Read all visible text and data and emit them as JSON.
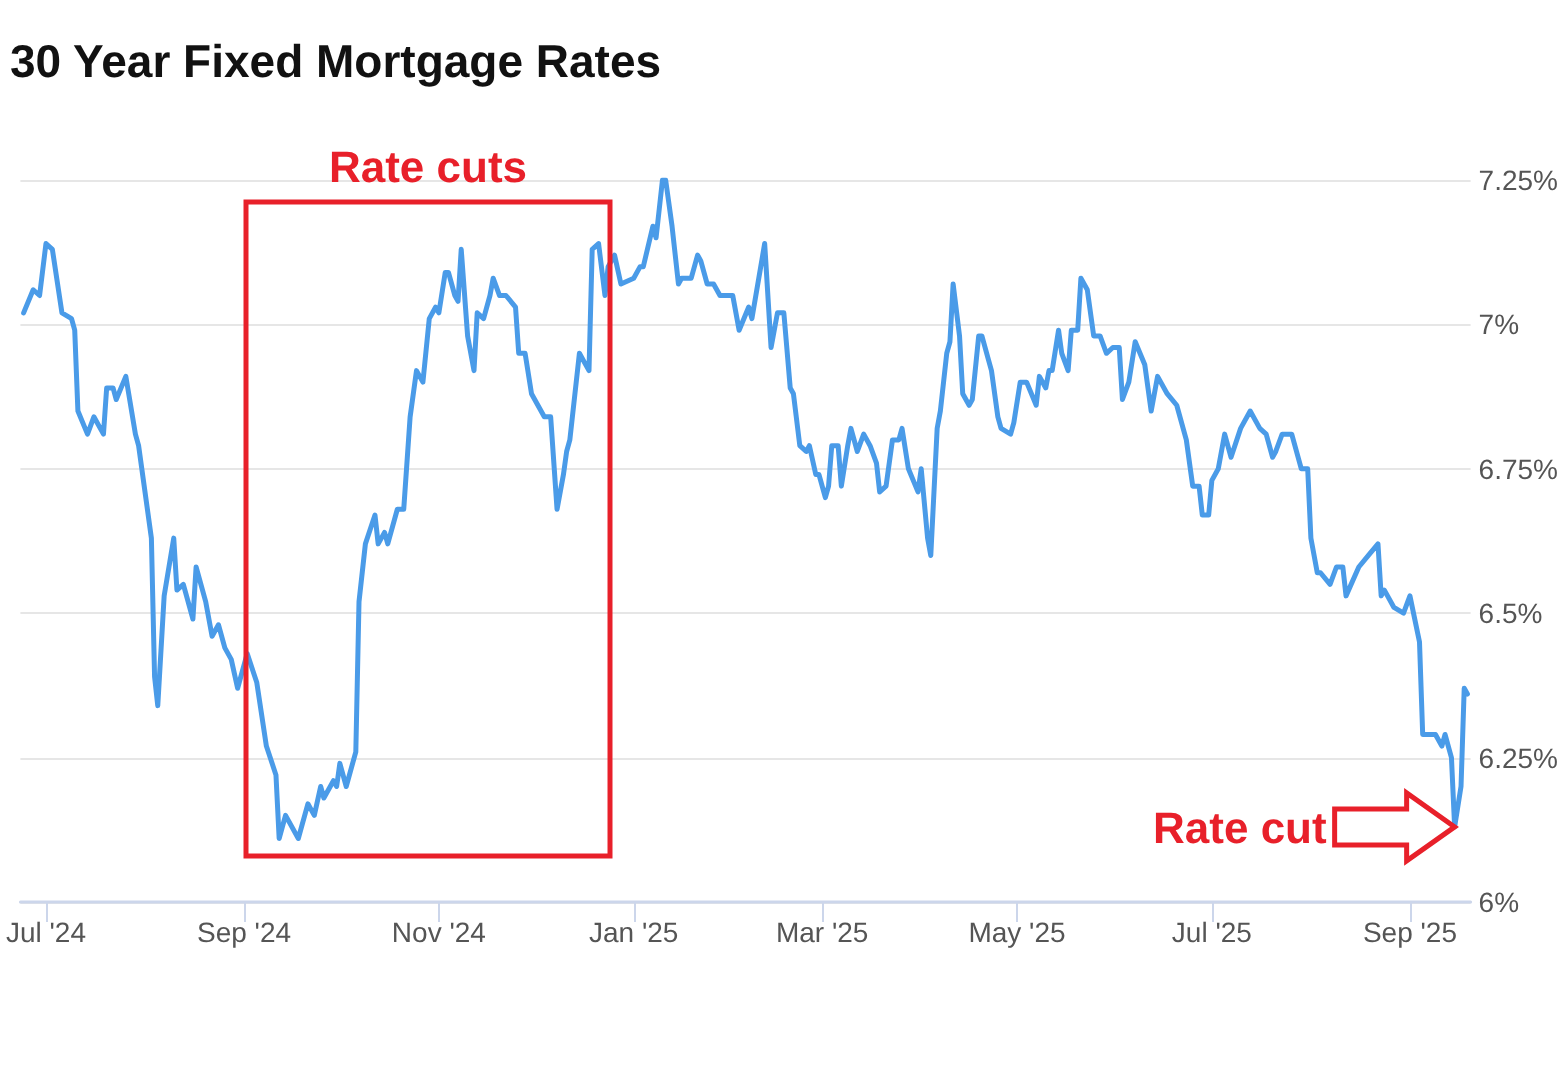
{
  "chart_data": {
    "type": "line",
    "title": "30 Year Fixed Mortgage Rates",
    "annotations": [
      "Rate cuts",
      {
        "text": "Rate cut",
        "x": "2025-09-15",
        "y": 6.13
      }
    ],
    "grid": "y",
    "marker": "none",
    "line_style": "solid",
    "xlim": [
      "2024-06-23",
      "2025-09-20"
    ],
    "xticks": [
      {
        "value": "2024-07-01",
        "label": "Jul '24"
      },
      {
        "value": "2024-09-01",
        "label": "Sep '24"
      },
      {
        "value": "2024-11-01",
        "label": "Nov '24"
      },
      {
        "value": "2025-01-01",
        "label": "Jan '25"
      },
      {
        "value": "2025-03-01",
        "label": "Mar '25"
      },
      {
        "value": "2025-05-01",
        "label": "May '25"
      },
      {
        "value": "2025-07-01",
        "label": "Jul '25"
      },
      {
        "value": "2025-09-01",
        "label": "Sep '25"
      }
    ],
    "ylim": [
      6,
      7.25
    ],
    "yticks": [
      {
        "value": 6,
        "label": "6%"
      },
      {
        "value": 6.25,
        "label": "6.25%"
      },
      {
        "value": 6.5,
        "label": "6.5%"
      },
      {
        "value": 6.75,
        "label": "6.75%"
      },
      {
        "value": 7,
        "label": "7%"
      },
      {
        "value": 7.25,
        "label": "7.25%"
      }
    ],
    "x": [
      "2024-06-24",
      "2024-06-27",
      "2024-06-29",
      "2024-07-01",
      "2024-07-03",
      "2024-07-06",
      "2024-07-09",
      "2024-07-10",
      "2024-07-11",
      "2024-07-14",
      "2024-07-16",
      "2024-07-19",
      "2024-07-20",
      "2024-07-22",
      "2024-07-23",
      "2024-07-26",
      "2024-07-29",
      "2024-07-30",
      "2024-08-03",
      "2024-08-04",
      "2024-08-05",
      "2024-08-07",
      "2024-08-10",
      "2024-08-11",
      "2024-08-13",
      "2024-08-16",
      "2024-08-17",
      "2024-08-20",
      "2024-08-22",
      "2024-08-24",
      "2024-08-26",
      "2024-08-28",
      "2024-08-30",
      "2024-09-02",
      "2024-09-05",
      "2024-09-08",
      "2024-09-11",
      "2024-09-12",
      "2024-09-14",
      "2024-09-18",
      "2024-09-21",
      "2024-09-23",
      "2024-09-25",
      "2024-09-26",
      "2024-09-29",
      "2024-09-30",
      "2024-10-01",
      "2024-10-03",
      "2024-10-06",
      "2024-10-07",
      "2024-10-09",
      "2024-10-12",
      "2024-10-13",
      "2024-10-15",
      "2024-10-16",
      "2024-10-19",
      "2024-10-21",
      "2024-10-23",
      "2024-10-25",
      "2024-10-27",
      "2024-10-29",
      "2024-10-31",
      "2024-11-01",
      "2024-11-03",
      "2024-11-04",
      "2024-11-06",
      "2024-11-07",
      "2024-11-08",
      "2024-11-10",
      "2024-11-12",
      "2024-11-13",
      "2024-11-15",
      "2024-11-17",
      "2024-11-18",
      "2024-11-20",
      "2024-11-22",
      "2024-11-25",
      "2024-11-26",
      "2024-11-28",
      "2024-11-30",
      "2024-12-02",
      "2024-12-04",
      "2024-12-06",
      "2024-12-08",
      "2024-12-10",
      "2024-12-11",
      "2024-12-12",
      "2024-12-15",
      "2024-12-18",
      "2024-12-19",
      "2024-12-21",
      "2024-12-23",
      "2024-12-24",
      "2024-12-26",
      "2024-12-28",
      "2025-01-01",
      "2025-01-03",
      "2025-01-04",
      "2025-01-07",
      "2025-01-08",
      "2025-01-10",
      "2025-01-11",
      "2025-01-13",
      "2025-01-15",
      "2025-01-16",
      "2025-01-19",
      "2025-01-21",
      "2025-01-22",
      "2025-01-24",
      "2025-01-26",
      "2025-01-28",
      "2025-02-01",
      "2025-02-03",
      "2025-02-06",
      "2025-02-07",
      "2025-02-11",
      "2025-02-13",
      "2025-02-15",
      "2025-02-17",
      "2025-02-19",
      "2025-02-20",
      "2025-02-22",
      "2025-02-24",
      "2025-02-25",
      "2025-02-27",
      "2025-02-28",
      "2025-03-02",
      "2025-03-03",
      "2025-03-04",
      "2025-03-06",
      "2025-03-07",
      "2025-03-09",
      "2025-03-10",
      "2025-03-12",
      "2025-03-14",
      "2025-03-16",
      "2025-03-18",
      "2025-03-19",
      "2025-03-21",
      "2025-03-23",
      "2025-03-25",
      "2025-03-26",
      "2025-03-28",
      "2025-03-31",
      "2025-04-01",
      "2025-04-03",
      "2025-04-04",
      "2025-04-06",
      "2025-04-07",
      "2025-04-09",
      "2025-04-10",
      "2025-04-11",
      "2025-04-13",
      "2025-04-14",
      "2025-04-16",
      "2025-04-17",
      "2025-04-19",
      "2025-04-20",
      "2025-04-22",
      "2025-04-23",
      "2025-04-25",
      "2025-04-26",
      "2025-04-29",
      "2025-04-30",
      "2025-05-02",
      "2025-05-04",
      "2025-05-07",
      "2025-05-08",
      "2025-05-10",
      "2025-05-11",
      "2025-05-12",
      "2025-05-14",
      "2025-05-15",
      "2025-05-17",
      "2025-05-18",
      "2025-05-20",
      "2025-05-21",
      "2025-05-23",
      "2025-05-25",
      "2025-05-27",
      "2025-05-29",
      "2025-05-31",
      "2025-06-02",
      "2025-06-03",
      "2025-06-05",
      "2025-06-07",
      "2025-06-10",
      "2025-06-12",
      "2025-06-14",
      "2025-06-17",
      "2025-06-20",
      "2025-06-23",
      "2025-06-25",
      "2025-06-27",
      "2025-06-28",
      "2025-06-30",
      "2025-07-01",
      "2025-07-03",
      "2025-07-05",
      "2025-07-07",
      "2025-07-10",
      "2025-07-13",
      "2025-07-16",
      "2025-07-18",
      "2025-07-20",
      "2025-07-21",
      "2025-07-23",
      "2025-07-26",
      "2025-07-29",
      "2025-07-31",
      "2025-08-01",
      "2025-08-03",
      "2025-08-04",
      "2025-08-07",
      "2025-08-09",
      "2025-08-11",
      "2025-08-12",
      "2025-08-16",
      "2025-08-19",
      "2025-08-22",
      "2025-08-23",
      "2025-08-24",
      "2025-08-27",
      "2025-08-30",
      "2025-09-01",
      "2025-09-04",
      "2025-09-05",
      "2025-09-07",
      "2025-09-09",
      "2025-09-11",
      "2025-09-12",
      "2025-09-14",
      "2025-09-15",
      "2025-09-17",
      "2025-09-18",
      "2025-09-19"
    ],
    "series": [
      {
        "color": "#4a9be8",
        "values": [
          7.02,
          7.06,
          7.05,
          7.14,
          7.13,
          7.02,
          7.01,
          6.99,
          6.85,
          6.81,
          6.84,
          6.81,
          6.89,
          6.89,
          6.87,
          6.91,
          6.81,
          6.79,
          6.63,
          6.39,
          6.34,
          6.53,
          6.63,
          6.54,
          6.55,
          6.49,
          6.58,
          6.52,
          6.46,
          6.48,
          6.44,
          6.42,
          6.37,
          6.43,
          6.38,
          6.27,
          6.22,
          6.11,
          6.15,
          6.11,
          6.17,
          6.15,
          6.2,
          6.18,
          6.21,
          6.2,
          6.24,
          6.2,
          6.26,
          6.52,
          6.62,
          6.67,
          6.62,
          6.64,
          6.62,
          6.68,
          6.68,
          6.84,
          6.92,
          6.9,
          7.01,
          7.03,
          7.02,
          7.09,
          7.09,
          7.05,
          7.04,
          7.13,
          6.98,
          6.92,
          7.02,
          7.01,
          7.05,
          7.08,
          7.05,
          7.05,
          7.03,
          6.95,
          6.95,
          6.88,
          6.86,
          6.84,
          6.84,
          6.68,
          6.74,
          6.78,
          6.8,
          6.95,
          6.92,
          7.13,
          7.14,
          7.05,
          7.1,
          7.12,
          7.07,
          7.08,
          7.1,
          7.1,
          7.17,
          7.15,
          7.25,
          7.25,
          7.17,
          7.07,
          7.08,
          7.08,
          7.12,
          7.11,
          7.07,
          7.07,
          7.05,
          7.05,
          6.99,
          7.03,
          7.01,
          7.14,
          6.96,
          7.02,
          7.02,
          6.89,
          6.88,
          6.79,
          6.78,
          6.79,
          6.74,
          6.74,
          6.7,
          6.72,
          6.79,
          6.79,
          6.72,
          6.79,
          6.82,
          6.78,
          6.81,
          6.79,
          6.76,
          6.71,
          6.72,
          6.8,
          6.8,
          6.82,
          6.75,
          6.71,
          6.75,
          6.63,
          6.6,
          6.82,
          6.85,
          6.95,
          6.97,
          7.07,
          6.98,
          6.88,
          6.86,
          6.87,
          6.98,
          6.98,
          6.94,
          6.92,
          6.84,
          6.82,
          6.81,
          6.83,
          6.9,
          6.9,
          6.86,
          6.91,
          6.89,
          6.92,
          6.92,
          6.99,
          6.95,
          6.92,
          6.99,
          6.99,
          7.08,
          7.06,
          6.98,
          6.98,
          6.95,
          6.96,
          6.96,
          6.87,
          6.9,
          6.97,
          6.93,
          6.85,
          6.91,
          6.88,
          6.86,
          6.8,
          6.72,
          6.72,
          6.67,
          6.67,
          6.73,
          6.75,
          6.81,
          6.77,
          6.82,
          6.85,
          6.82,
          6.81,
          6.77,
          6.78,
          6.81,
          6.81,
          6.75,
          6.75,
          6.63,
          6.57,
          6.57,
          6.55,
          6.58,
          6.58,
          6.53,
          6.58,
          6.6,
          6.62,
          6.53,
          6.54,
          6.51,
          6.5,
          6.53,
          6.45,
          6.29,
          6.29,
          6.29,
          6.27,
          6.29,
          6.25,
          6.13,
          6.2,
          6.37,
          6.36
        ]
      }
    ]
  }
}
